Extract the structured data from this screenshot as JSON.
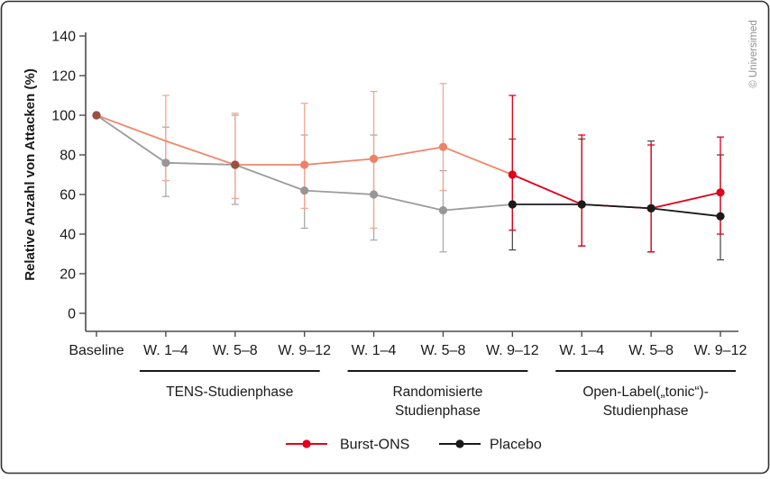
{
  "figure": {
    "copyright": "© Universimed",
    "border_color": "#2f2f2f",
    "background": "#ffffff",
    "axis_color": "#4d4d4d",
    "text_color": "#1a1a1a",
    "copyright_color": "#8f8f8f"
  },
  "legend": {
    "items": [
      {
        "label": "Burst-ONS",
        "color": "#e2001a"
      },
      {
        "label": "Placebo",
        "color": "#1a1a1a"
      }
    ]
  },
  "chart_data": {
    "type": "line",
    "title": "",
    "xlabel": "",
    "ylabel": "Relative Anzahl von Attacken (%)",
    "ylim": [
      0,
      140
    ],
    "yticks": [
      0,
      20,
      40,
      60,
      80,
      100,
      120,
      140
    ],
    "grid": false,
    "legend_position": "bottom",
    "error_bars": true,
    "categories": [
      "Baseline",
      "W. 1–4",
      "W. 5–8",
      "W. 9–12",
      "W. 1–4",
      "W. 5–8",
      "W. 9–12",
      "W. 1–4",
      "W. 5–8",
      "W. 9–12"
    ],
    "phases": [
      {
        "lines": [
          "TENS-Studienphase"
        ],
        "from": 1,
        "to": 3
      },
      {
        "lines": [
          "Randomisierte",
          "Studienphase"
        ],
        "from": 4,
        "to": 6
      },
      {
        "lines": [
          "Open-Label(„tonic“)-",
          "Studienphase"
        ],
        "from": 7,
        "to": 9
      }
    ],
    "palette": {
      "salmon": "#f0866c",
      "salmon_marker": "#ee8166",
      "salmon_err": "#f4a792",
      "red": "#e2001a",
      "gray": "#9c9c9c",
      "gray_marker": "#979797",
      "gray_err": "#ababab",
      "black": "#1a1a1a",
      "black_err": "#4f4f4f",
      "overlap_dot": "#9c4f43"
    },
    "series": [
      {
        "name": "Burst-ONS",
        "points": [
          {
            "v": 100,
            "lo": null,
            "hi": null,
            "stroke": "salmon",
            "dot": "overlap",
            "marker": true
          },
          {
            "v": 87,
            "lo": 67,
            "hi": 110,
            "stroke": "salmon",
            "dot": "salmon",
            "marker": false
          },
          {
            "v": 75,
            "lo": 58,
            "hi": 101,
            "stroke": "salmon",
            "dot": "overlap",
            "marker": true
          },
          {
            "v": 75,
            "lo": 53,
            "hi": 106,
            "stroke": "salmon",
            "dot": "salmon",
            "marker": true
          },
          {
            "v": 78,
            "lo": 43,
            "hi": 112,
            "stroke": "salmon",
            "dot": "salmon",
            "marker": true
          },
          {
            "v": 84,
            "lo": 62,
            "hi": 116,
            "stroke": "salmon",
            "dot": "salmon",
            "marker": true
          },
          {
            "v": 70,
            "lo": 42,
            "hi": 110,
            "stroke": "red",
            "dot": "red",
            "marker": true
          },
          {
            "v": 55,
            "lo": 34,
            "hi": 90,
            "stroke": "red",
            "dot": "red",
            "marker": true
          },
          {
            "v": 53,
            "lo": 31,
            "hi": 85,
            "stroke": "red",
            "dot": "red",
            "marker": true
          },
          {
            "v": 61,
            "lo": 40,
            "hi": 89,
            "stroke": "red",
            "dot": "red",
            "marker": true
          }
        ]
      },
      {
        "name": "Placebo",
        "points": [
          {
            "v": 100,
            "lo": null,
            "hi": null,
            "stroke": "gray",
            "dot": "overlap",
            "marker": true
          },
          {
            "v": 76,
            "lo": 59,
            "hi": 94,
            "stroke": "gray",
            "dot": "gray",
            "marker": true
          },
          {
            "v": 75,
            "lo": 55,
            "hi": 100,
            "stroke": "gray",
            "dot": "overlap",
            "marker": true
          },
          {
            "v": 62,
            "lo": 43,
            "hi": 90,
            "stroke": "gray",
            "dot": "gray",
            "marker": true
          },
          {
            "v": 60,
            "lo": 37,
            "hi": 90,
            "stroke": "gray",
            "dot": "gray",
            "marker": true
          },
          {
            "v": 52,
            "lo": 31,
            "hi": 72,
            "stroke": "gray",
            "dot": "gray",
            "marker": true
          },
          {
            "v": 55,
            "lo": 32,
            "hi": 88,
            "stroke": "black",
            "dot": "black",
            "marker": true
          },
          {
            "v": 55,
            "lo": 34,
            "hi": 88,
            "stroke": "black",
            "dot": "black",
            "marker": true
          },
          {
            "v": 53,
            "lo": 31,
            "hi": 87,
            "stroke": "black",
            "dot": "black",
            "marker": true
          },
          {
            "v": 49,
            "lo": 27,
            "hi": 80,
            "stroke": "black",
            "dot": "black",
            "marker": true
          }
        ]
      }
    ]
  }
}
